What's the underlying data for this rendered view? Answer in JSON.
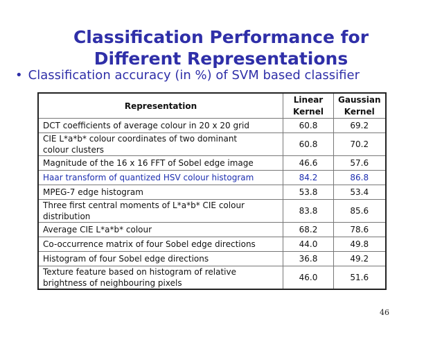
{
  "slide": {
    "title_line1": "Classification Performance for",
    "title_line2": "Different Representations",
    "bullet_marker": "•",
    "bullet_text": "Classification accuracy (in  %) of SVM based classifier",
    "page_number": "46"
  },
  "table": {
    "header": {
      "representation": "Representation",
      "linear_line1": "Linear",
      "linear_line2": "Kernel",
      "gaussian_line1": "Gaussian",
      "gaussian_line2": "Kernel"
    },
    "rows": [
      {
        "rep": "DCT coefficients of average colour in 20 x 20  grid",
        "linear": "60.8",
        "gaussian": "69.2"
      },
      {
        "rep_line1": "CIE L*a*b* colour coordinates of two dominant",
        "rep_line2": "colour clusters",
        "linear": "60.8",
        "gaussian": "70.2"
      },
      {
        "rep": "Magnitude of the 16 x 16 FFT of Sobel edge image",
        "linear": "46.6",
        "gaussian": "57.6"
      },
      {
        "rep": "Haar transform of quantized HSV colour histogram",
        "linear": "84.2",
        "gaussian": "86.8"
      },
      {
        "rep": "MPEG-7 edge histogram",
        "linear": "53.8",
        "gaussian": "53.4"
      },
      {
        "rep_line1": "Three first central moments of L*a*b* CIE colour",
        "rep_line2": "distribution",
        "linear": "83.8",
        "gaussian": "85.6"
      },
      {
        "rep": "Average CIE L*a*b* colour",
        "linear": "68.2",
        "gaussian": "78.6"
      },
      {
        "rep": "Co-occurrence matrix of four Sobel edge directions",
        "linear": "44.0",
        "gaussian": "49.8"
      },
      {
        "rep": "Histogram of four Sobel edge directions",
        "linear": "36.8",
        "gaussian": "49.2"
      },
      {
        "rep_line1": "Texture feature based on histogram of relative",
        "rep_line2": "brightness of neighbouring pixels",
        "linear": "46.0",
        "gaussian": "51.6"
      }
    ]
  },
  "colors": {
    "title": "#2f2fa8",
    "highlight_row": "#1d2fb0"
  }
}
